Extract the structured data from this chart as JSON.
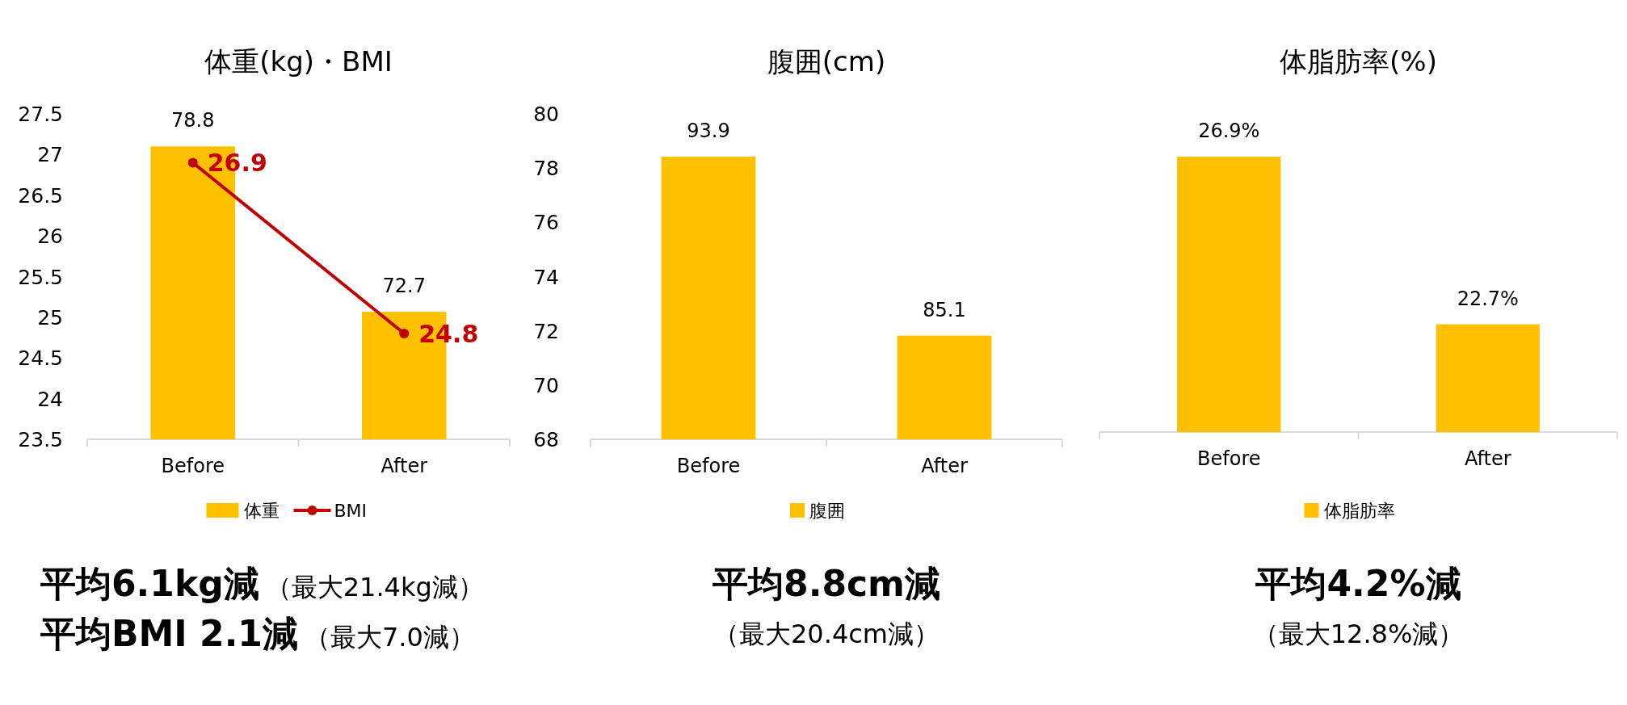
{
  "chart_data": [
    {
      "type": "bar",
      "title": "体重(kg)・BMI",
      "categories": [
        "Before",
        "After"
      ],
      "series": [
        {
          "name": "体重",
          "type": "bar",
          "axis": "y2",
          "color": "#ffc000",
          "values": [
            78.8,
            72.7
          ]
        },
        {
          "name": "BMI",
          "type": "line",
          "color": "#c00000",
          "values": [
            26.9,
            24.8
          ]
        }
      ],
      "ylim": [
        23.5,
        27.5
      ],
      "yticks": [
        23.5,
        24,
        24.5,
        25,
        25.5,
        26,
        26.5,
        27,
        27.5
      ],
      "y2lim": [
        68,
        80
      ],
      "y2ticks": [
        68,
        70,
        72,
        74,
        76,
        78,
        80
      ],
      "marker": "circle",
      "data_labels": true,
      "legend": "bottom",
      "annotations": [
        "平均6.1kg減",
        "（最大21.4kg減）",
        "平均BMI 2.1減",
        "（最大7.0減）"
      ]
    },
    {
      "type": "bar",
      "title": "腹囲(cm)",
      "categories": [
        "Before",
        "After"
      ],
      "ylim": [
        80,
        93.9
      ],
      "tick_labels": "x",
      "data_labels": true,
      "series": [
        {
          "name": "腹囲",
          "color": "#ffc000",
          "values": [
            93.9,
            85.1
          ]
        }
      ],
      "legend": "bottom",
      "annotations": [
        "平均8.8cm減",
        "（最大20.4cm減）"
      ]
    },
    {
      "type": "bar",
      "title": "体脂肪率(%)",
      "categories": [
        "Before",
        "After"
      ],
      "ylim": [
        20,
        26.9
      ],
      "tick_labels": "x",
      "series": [
        {
          "name": "体脂肪率",
          "color": "#ffc000",
          "values": [
            26.9,
            22.7
          ],
          "value_labels": [
            "26.9%",
            "22.7%"
          ]
        }
      ],
      "legend": "bottom",
      "annotations": [
        "平均4.2%減",
        "（最大12.8%減）"
      ]
    }
  ]
}
